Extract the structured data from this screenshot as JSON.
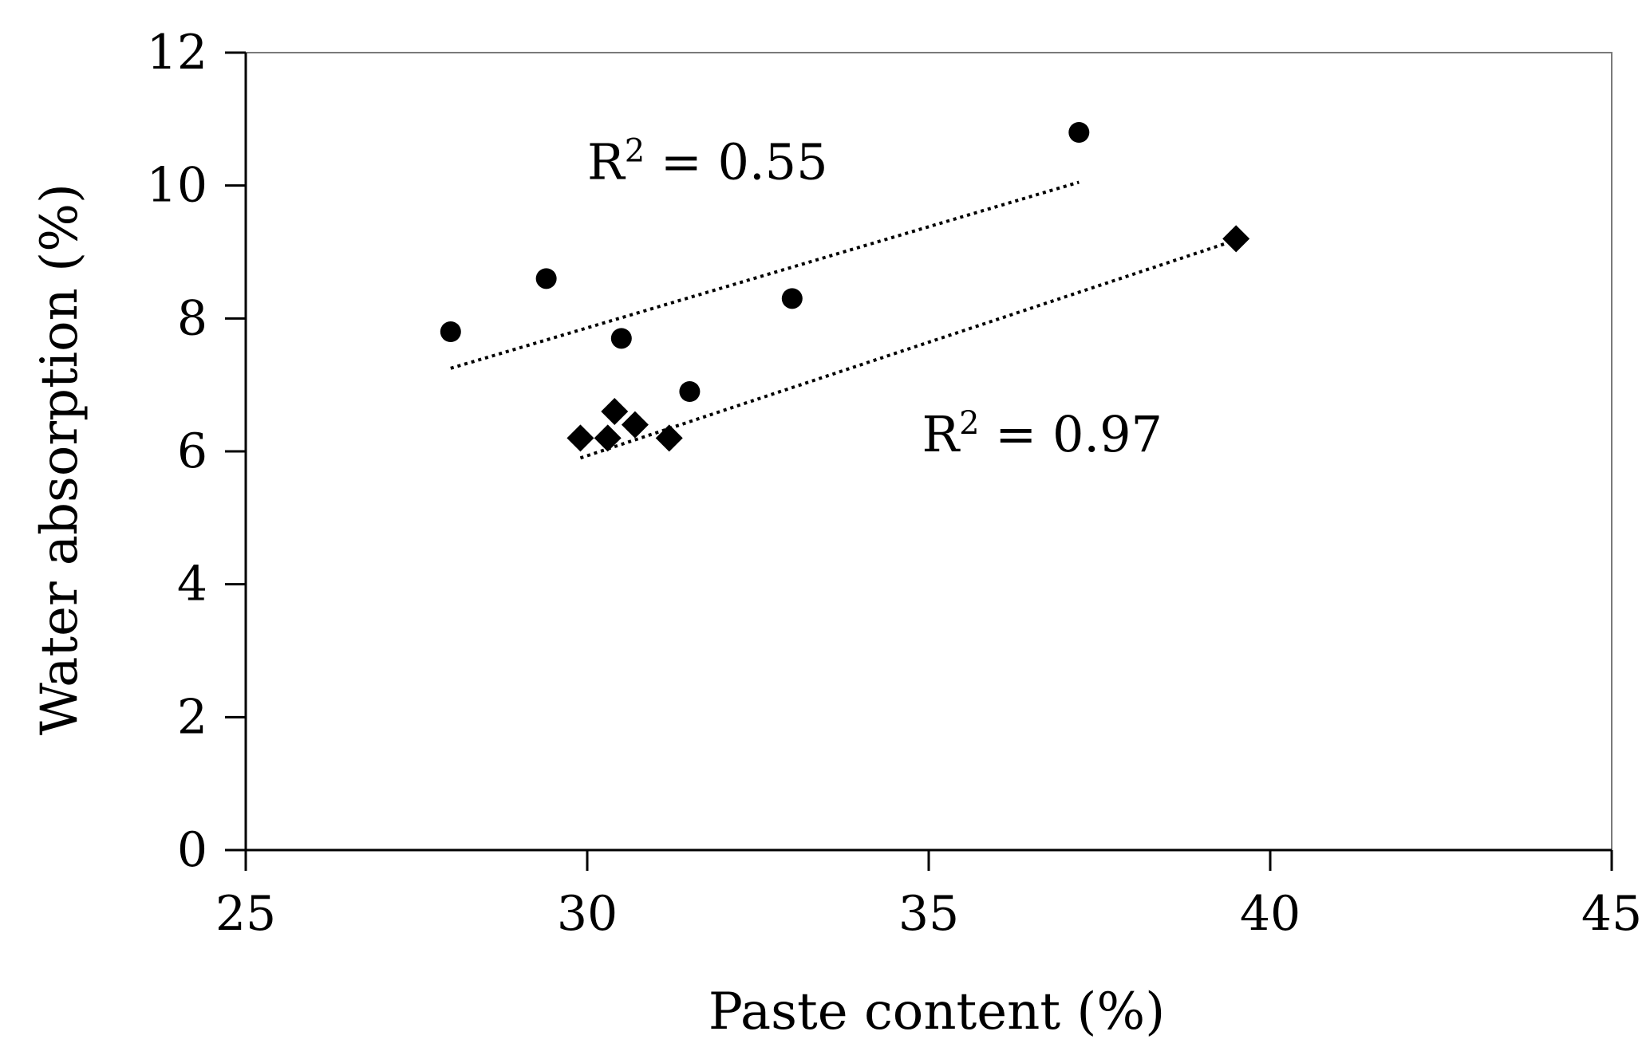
{
  "chart_data": {
    "type": "scatter",
    "title": "",
    "xlabel": "Paste content (%)",
    "ylabel": "Water absorption (%)",
    "xlim": [
      25,
      45
    ],
    "ylim": [
      0,
      12
    ],
    "x_ticks": [
      25,
      30,
      35,
      40,
      45
    ],
    "y_ticks": [
      0,
      2,
      4,
      6,
      8,
      10,
      12
    ],
    "grid": false,
    "series": [
      {
        "marker": "circle",
        "points": [
          {
            "x": 28.0,
            "y": 7.8
          },
          {
            "x": 29.4,
            "y": 8.6
          },
          {
            "x": 30.5,
            "y": 7.7
          },
          {
            "x": 31.5,
            "y": 6.9
          },
          {
            "x": 33.0,
            "y": 8.3
          },
          {
            "x": 37.2,
            "y": 10.8
          }
        ],
        "trendline": {
          "x": [
            28.0,
            37.2
          ],
          "y": [
            7.25,
            10.05
          ]
        }
      },
      {
        "marker": "diamond",
        "points": [
          {
            "x": 29.9,
            "y": 6.2
          },
          {
            "x": 30.3,
            "y": 6.2
          },
          {
            "x": 30.4,
            "y": 6.6
          },
          {
            "x": 30.7,
            "y": 6.4
          },
          {
            "x": 31.2,
            "y": 6.2
          },
          {
            "x": 39.5,
            "y": 9.2
          }
        ],
        "trendline": {
          "x": [
            29.9,
            39.5
          ],
          "y": [
            5.9,
            9.18
          ]
        }
      }
    ],
    "annotations": [
      {
        "base": "R",
        "sup": "2",
        "rest": " = 0.55",
        "anchor": {
          "x": 30.0,
          "y": 10.1
        }
      },
      {
        "base": "R",
        "sup": "2",
        "rest": " = 0.97",
        "anchor": {
          "x": 34.9,
          "y": 6.0
        }
      }
    ],
    "colors": {
      "marker": "#000000",
      "axis": "#000000",
      "trendline": "#000000"
    }
  }
}
